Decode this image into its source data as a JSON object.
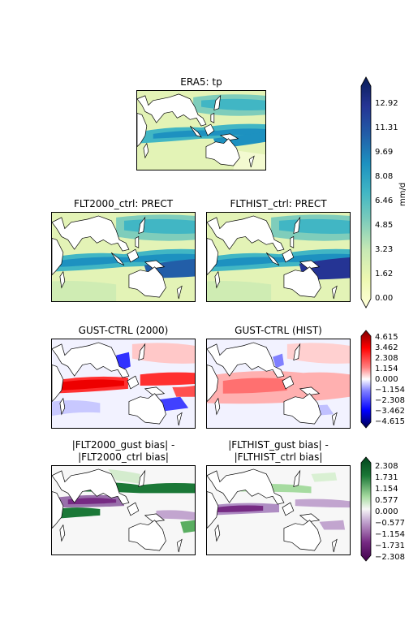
{
  "figure": {
    "panels": [
      {
        "id": "era5",
        "title": "ERA5: tp"
      },
      {
        "id": "flt2000_ctrl",
        "title": "FLT2000_ctrl: PRECT"
      },
      {
        "id": "flthist_ctrl",
        "title": "FLTHIST_ctrl: PRECT"
      },
      {
        "id": "gust_ctrl_2000",
        "title": "GUST-CTRL (2000)"
      },
      {
        "id": "gust_ctrl_hist",
        "title": "GUST-CTRL (HIST)"
      },
      {
        "id": "bias_2000",
        "title_lines": [
          "|FLT2000_gust bias| -",
          "|FLT2000_ctrl bias|"
        ]
      },
      {
        "id": "bias_hist",
        "title_lines": [
          "|FLTHIST_gust bias| -",
          "|FLTHIST_ctrl bias|"
        ]
      }
    ]
  },
  "chart_data": [
    {
      "type": "heatmap",
      "panels": [
        "ERA5: tp",
        "FLT2000_ctrl: PRECT",
        "FLTHIST_ctrl: PRECT"
      ],
      "colormap": "YlGnBu",
      "colorbar_label": "mm/d",
      "colorbar_ticks": [
        "0.00",
        "1.62",
        "3.23",
        "4.85",
        "6.46",
        "8.08",
        "9.69",
        "11.31",
        "12.92"
      ],
      "range": [
        0.0,
        14.5
      ]
    },
    {
      "type": "heatmap",
      "panels": [
        "GUST-CTRL (2000)",
        "GUST-CTRL (HIST)"
      ],
      "colormap": "seismic",
      "colorbar_ticks": [
        "4.615",
        "3.462",
        "2.308",
        "1.154",
        "0.000",
        "−1.154",
        "−2.308",
        "−3.462",
        "−4.615"
      ],
      "range": [
        -5.2,
        5.2
      ]
    },
    {
      "type": "heatmap",
      "panels": [
        "|FLT2000_gust bias| - |FLT2000_ctrl bias|",
        "|FLTHIST_gust bias| - |FLTHIST_ctrl bias|"
      ],
      "colormap": "PRGn",
      "colorbar_ticks": [
        "2.308",
        "1.731",
        "1.154",
        "0.577",
        "0.000",
        "−0.577",
        "−1.154",
        "−1.731",
        "−2.308"
      ],
      "range": [
        -2.6,
        2.6
      ]
    }
  ],
  "colors": {
    "precip": [
      "#ffffd9",
      "#edf8b1",
      "#c7e9b4",
      "#7fcdbb",
      "#41b6c4",
      "#1d91c0",
      "#225ea8",
      "#253494",
      "#081d58"
    ],
    "diff": [
      "#00004c",
      "#0000ff",
      "#8080ff",
      "#ffffff",
      "#ff8080",
      "#ff0000",
      "#800000"
    ],
    "bias": [
      "#40004b",
      "#762a83",
      "#c2a5cf",
      "#f7f7f7",
      "#a6dba0",
      "#1b7837",
      "#00441b"
    ]
  }
}
